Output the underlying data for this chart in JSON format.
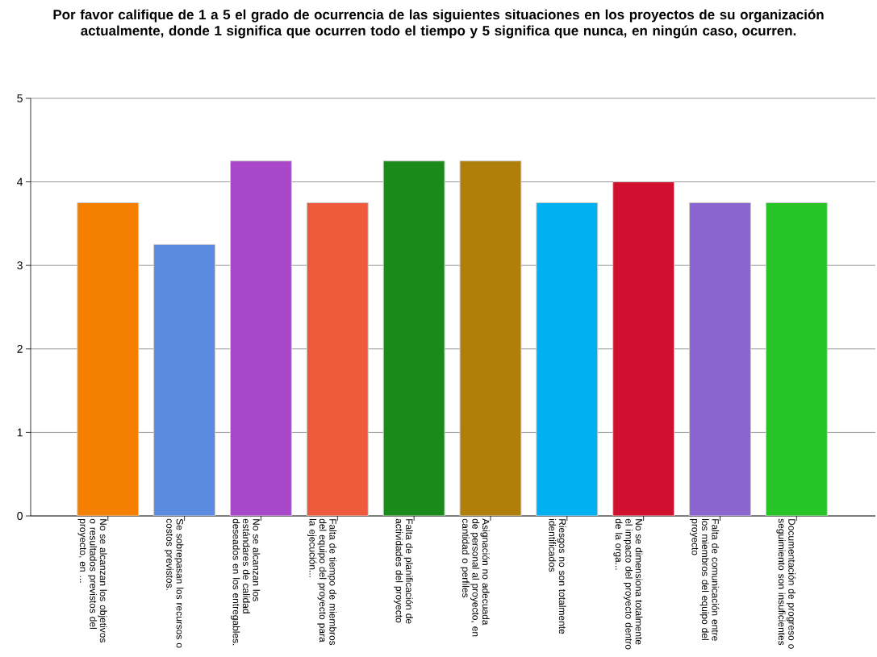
{
  "chart_data": {
    "type": "bar",
    "title": "Por favor califique de 1 a 5 el grado de ocurrencia de las siguientes situaciones en los proyectos de su organización actualmente, donde 1 significa que ocurren todo el tiempo y 5 significa que nunca, en ningún caso,  ocurren.",
    "categories": [
      "No se alcanzan los objetivos o resultados previstos del proyecto, en ...",
      "Se sobrepasan los recursos o costos previstos.",
      "No se alcanzan los estándares de calidad deseados en los entregables.",
      "Falta de tiempo de miembros del equipo del proyecto para la ejecución...",
      "Falta de planificación de actividades del proyecto",
      "Asignación no adecuada de personal al proyecto, en cantidad o perfiles",
      "Riesgos no son totalmente identificados",
      "No se dimensiona totalmente el impacto del proyecto dentro de la orga...",
      "Falta de comunicación entre los miembros del equipo del proyecto",
      "Documentación de progreso o seguimiento son insuficientes"
    ],
    "values": [
      3.75,
      3.25,
      4.25,
      3.75,
      4.25,
      4.25,
      3.75,
      4,
      3.75,
      3.75
    ],
    "colors": [
      "#f57f00",
      "#5b8be0",
      "#a847c8",
      "#f05a3c",
      "#1a8a1a",
      "#b07e0a",
      "#00b0f0",
      "#d0102e",
      "#8a65d0",
      "#26c426"
    ],
    "ylim": [
      0,
      5
    ],
    "yticks": [
      0,
      1,
      2,
      3,
      4,
      5
    ],
    "grid": "y"
  }
}
